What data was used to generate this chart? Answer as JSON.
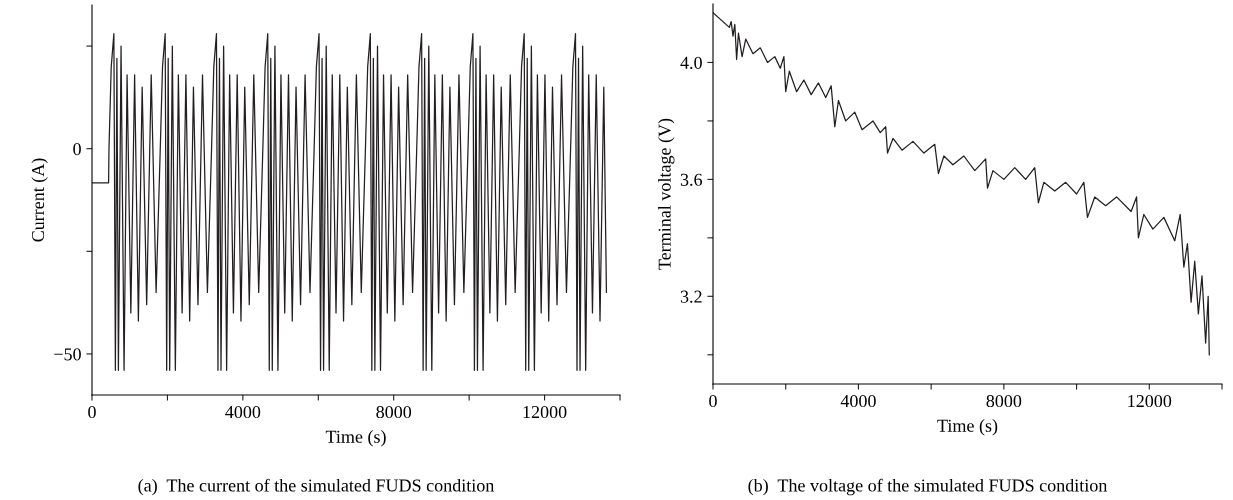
{
  "chart_data": [
    {
      "type": "line",
      "xlabel": "Time (s)",
      "ylabel": "Current (A)",
      "annotations": [
        "(a)  The current of the simulated FUDS condition"
      ],
      "xlim": [
        0,
        14000
      ],
      "xticks": [
        0,
        {
          "value": 2000,
          "label": null
        },
        4000,
        {
          "value": 6000,
          "label": null
        },
        8000,
        {
          "value": 10000,
          "label": null
        },
        12000,
        {
          "value": 14000,
          "label": null
        }
      ],
      "ylim": [
        -60,
        35
      ],
      "yticks": [
        {
          "value": 25,
          "label": null
        },
        0,
        {
          "value": -25,
          "label": null
        },
        {
          "value": -50,
          "label": "−50"
        }
      ],
      "grid": false,
      "legend": false,
      "marker": "none",
      "line_style": "solid",
      "series": [
        {
          "color": "#231f20",
          "x": [
            0,
            440,
            450,
            510,
            580,
            620,
            660,
            700,
            770,
            850,
            930,
            1030,
            1130,
            1230,
            1330,
            1450,
            1570,
            1700,
            1810,
            1870,
            1940,
            1980,
            2020,
            2060,
            2130,
            2210,
            2290,
            2390,
            2490,
            2590,
            2690,
            2810,
            2930,
            3060,
            3170,
            3230,
            3300,
            3340,
            3380,
            3420,
            3490,
            3570,
            3650,
            3750,
            3850,
            3950,
            4050,
            4170,
            4290,
            4420,
            4530,
            4590,
            4660,
            4700,
            4740,
            4780,
            4850,
            4930,
            5010,
            5110,
            5210,
            5310,
            5410,
            5530,
            5650,
            5780,
            5890,
            5950,
            6020,
            6060,
            6100,
            6140,
            6210,
            6290,
            6370,
            6470,
            6570,
            6670,
            6770,
            6890,
            7010,
            7140,
            7250,
            7310,
            7380,
            7420,
            7460,
            7500,
            7570,
            7650,
            7730,
            7830,
            7930,
            8030,
            8130,
            8250,
            8370,
            8500,
            8610,
            8670,
            8740,
            8780,
            8820,
            8860,
            8930,
            9010,
            9090,
            9190,
            9290,
            9390,
            9490,
            9610,
            9730,
            9860,
            9970,
            10030,
            10100,
            10140,
            10180,
            10220,
            10290,
            10370,
            10450,
            10550,
            10650,
            10750,
            10850,
            10970,
            11090,
            11220,
            11330,
            11390,
            11460,
            11500,
            11540,
            11580,
            11650,
            11730,
            11810,
            11910,
            12010,
            12110,
            12210,
            12330,
            12450,
            12580,
            12690,
            12750,
            12820,
            12860,
            12900,
            12940,
            13010,
            13090,
            13170,
            13270,
            13370,
            13470,
            13570,
            13640
          ],
          "values": [
            -8.3,
            -8.3,
            0,
            20,
            28,
            -54,
            22,
            -54,
            25,
            -54,
            18,
            -40,
            18,
            -42,
            15,
            -38,
            18,
            -35,
            0,
            20,
            28,
            -54,
            22,
            -54,
            25,
            -54,
            18,
            -40,
            18,
            -42,
            15,
            -38,
            18,
            -35,
            0,
            20,
            28,
            -54,
            22,
            -54,
            25,
            -54,
            18,
            -40,
            18,
            -42,
            15,
            -38,
            18,
            -35,
            0,
            20,
            28,
            -54,
            22,
            -54,
            25,
            -54,
            18,
            -40,
            18,
            -42,
            15,
            -38,
            18,
            -35,
            0,
            20,
            28,
            -54,
            22,
            -54,
            25,
            -54,
            18,
            -40,
            18,
            -42,
            15,
            -38,
            18,
            -35,
            0,
            20,
            28,
            -54,
            22,
            -54,
            25,
            -54,
            18,
            -40,
            18,
            -42,
            15,
            -38,
            18,
            -35,
            0,
            20,
            28,
            -54,
            22,
            -54,
            25,
            -54,
            18,
            -40,
            18,
            -42,
            15,
            -38,
            18,
            -35,
            0,
            20,
            28,
            -54,
            22,
            -54,
            25,
            -54,
            18,
            -40,
            18,
            -42,
            15,
            -38,
            18,
            -35,
            0,
            20,
            28,
            -54,
            22,
            -54,
            25,
            -54,
            18,
            -40,
            18,
            -42,
            15,
            -38,
            18,
            -35,
            0,
            20,
            28,
            -54,
            22,
            -54,
            25,
            -54,
            18,
            -40,
            18,
            -42,
            15,
            -35
          ]
        }
      ]
    },
    {
      "type": "line",
      "xlabel": "Time (s)",
      "ylabel": "Terminal voltage (V)",
      "annotations": [
        "(b)  The voltage of the simulated FUDS condition"
      ],
      "xlim": [
        0,
        14000
      ],
      "xticks": [
        0,
        {
          "value": 2000,
          "label": null
        },
        4000,
        {
          "value": 6000,
          "label": null
        },
        8000,
        {
          "value": 10000,
          "label": null
        },
        12000,
        {
          "value": 14000,
          "label": null
        }
      ],
      "ylim": [
        2.9,
        4.2
      ],
      "yticks": [
        {
          "value": 3.0,
          "label": null
        },
        {
          "value": 3.2,
          "label": "3.2"
        },
        {
          "value": 3.4,
          "label": null
        },
        {
          "value": 3.6,
          "label": "3.6"
        },
        {
          "value": 3.8,
          "label": null
        },
        {
          "value": 4.0,
          "label": "4.0"
        }
      ],
      "grid": false,
      "legend": false,
      "marker": "none",
      "line_style": "solid",
      "series": [
        {
          "color": "#231f20",
          "x": [
            0,
            450,
            500,
            550,
            600,
            650,
            700,
            800,
            900,
            1100,
            1300,
            1500,
            1700,
            1850,
            1950,
            2000,
            2100,
            2300,
            2500,
            2700,
            2900,
            3100,
            3250,
            3350,
            3450,
            3650,
            3900,
            4100,
            4400,
            4600,
            4750,
            4800,
            4950,
            5200,
            5500,
            5800,
            6100,
            6200,
            6350,
            6600,
            6900,
            7200,
            7500,
            7550,
            7700,
            8000,
            8300,
            8600,
            8850,
            8950,
            9100,
            9400,
            9700,
            10000,
            10200,
            10300,
            10500,
            10800,
            11100,
            11500,
            11650,
            11700,
            11850,
            12100,
            12400,
            12700,
            12850,
            12950,
            13050,
            13150,
            13250,
            13350,
            13450,
            13550,
            13620,
            13650
          ],
          "values": [
            4.17,
            4.12,
            4.14,
            4.09,
            4.13,
            4.01,
            4.1,
            4.02,
            4.08,
            4.03,
            4.05,
            4.0,
            4.02,
            3.98,
            4.02,
            3.9,
            3.97,
            3.9,
            3.94,
            3.89,
            3.93,
            3.88,
            3.92,
            3.78,
            3.87,
            3.8,
            3.83,
            3.77,
            3.8,
            3.76,
            3.78,
            3.69,
            3.74,
            3.7,
            3.73,
            3.69,
            3.72,
            3.62,
            3.68,
            3.65,
            3.68,
            3.63,
            3.67,
            3.57,
            3.63,
            3.6,
            3.64,
            3.6,
            3.64,
            3.52,
            3.59,
            3.56,
            3.59,
            3.55,
            3.59,
            3.47,
            3.54,
            3.51,
            3.54,
            3.49,
            3.54,
            3.4,
            3.48,
            3.43,
            3.47,
            3.39,
            3.48,
            3.3,
            3.38,
            3.18,
            3.32,
            3.14,
            3.27,
            3.04,
            3.2,
            3.0
          ]
        }
      ]
    }
  ]
}
